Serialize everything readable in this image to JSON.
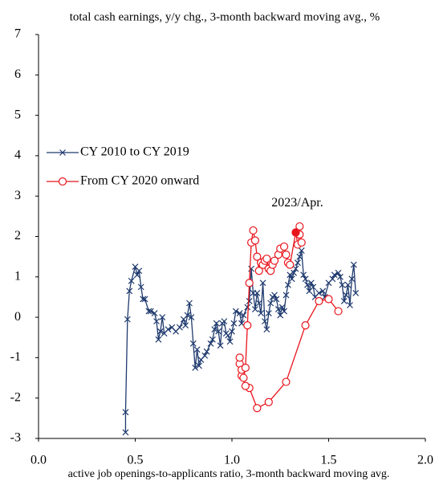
{
  "chart_data": {
    "type": "scatter-line",
    "title": "total cash earnings, y/y chg., 3-month backward moving avg., %",
    "x_label": "active job openings-to-applicants ratio, 3-month backward moving avg.",
    "xlim": [
      0,
      2
    ],
    "ylim": [
      -3,
      7
    ],
    "xticks": [
      {
        "value": 0,
        "label": "0.0"
      },
      0.5,
      {
        "value": 1,
        "label": "1.0"
      },
      1.5,
      {
        "value": 2,
        "label": "2.0"
      }
    ],
    "yticks": [
      -3,
      -2,
      -1,
      0,
      1,
      2,
      3,
      4,
      5,
      6,
      7
    ],
    "grid": false,
    "legend": "left",
    "series": [
      {
        "name": "CY 2010 to CY 2019",
        "color": "#1f3a6e",
        "marker": "x",
        "x": [
          0.45,
          0.45,
          0.46,
          0.47,
          0.48,
          0.5,
          0.51,
          0.52,
          0.53,
          0.54,
          0.55,
          0.57,
          0.58,
          0.6,
          0.61,
          0.62,
          0.63,
          0.64,
          0.65,
          0.67,
          0.69,
          0.71,
          0.73,
          0.75,
          0.76,
          0.77,
          0.78,
          0.79,
          0.8,
          0.81,
          0.82,
          0.83,
          0.84,
          0.86,
          0.87,
          0.89,
          0.9,
          0.91,
          0.92,
          0.93,
          0.94,
          0.95,
          0.96,
          0.97,
          0.98,
          0.99,
          1.0,
          1.01,
          1.02,
          1.04,
          1.05,
          1.06,
          1.08,
          1.09,
          1.1,
          1.11,
          1.12,
          1.13,
          1.14,
          1.15,
          1.16,
          1.17,
          1.18,
          1.19,
          1.2,
          1.21,
          1.22,
          1.23,
          1.24,
          1.25,
          1.26,
          1.27,
          1.28,
          1.29,
          1.3,
          1.31,
          1.32,
          1.33,
          1.34,
          1.35,
          1.36,
          1.37,
          1.38,
          1.39,
          1.4,
          1.41,
          1.42,
          1.43,
          1.45,
          1.47,
          1.48,
          1.5,
          1.52,
          1.53,
          1.55,
          1.56,
          1.57,
          1.58,
          1.59,
          1.6,
          1.61,
          1.62,
          1.63,
          1.64
        ],
        "values": [
          -2.85,
          -2.35,
          -0.05,
          0.65,
          0.9,
          1.25,
          1.05,
          1.15,
          0.75,
          0.45,
          0.45,
          0.15,
          0.15,
          0.1,
          -0.1,
          -0.55,
          -0.35,
          0.0,
          -0.4,
          -0.3,
          -0.25,
          -0.35,
          -0.25,
          -0.05,
          -0.2,
          0.05,
          0.35,
          0.0,
          -0.65,
          -1.25,
          -0.8,
          -1.2,
          -1.05,
          -0.95,
          -0.85,
          -0.65,
          -0.55,
          -0.3,
          -0.15,
          -0.35,
          -0.7,
          -0.15,
          -0.1,
          -0.4,
          -0.45,
          -0.6,
          -0.35,
          -0.15,
          0.15,
          0.1,
          -0.15,
          0.05,
          0.25,
          0.4,
          1.2,
          0.6,
          0.2,
          0.6,
          0.35,
          0.1,
          0.85,
          -0.1,
          -0.3,
          0.1,
          0.35,
          0.5,
          0.55,
          0.45,
          0.2,
          0.05,
          0.25,
          0.15,
          0.55,
          0.8,
          1.05,
          0.95,
          1.1,
          1.2,
          1.35,
          1.5,
          1.65,
          1.05,
          0.95,
          0.8,
          0.65,
          0.85,
          0.75,
          0.5,
          0.6,
          0.65,
          0.5,
          0.85,
          0.95,
          1.05,
          1.1,
          1.0,
          0.8,
          0.4,
          0.55,
          0.8,
          0.3,
          0.95,
          1.3,
          0.6
        ]
      },
      {
        "name": "From CY 2020 onward",
        "color": "#e8141c",
        "marker": "circle",
        "x": [
          1.55,
          1.5,
          1.45,
          1.38,
          1.28,
          1.19,
          1.13,
          1.09,
          1.07,
          1.05,
          1.04,
          1.04,
          1.05,
          1.06,
          1.07,
          1.08,
          1.09,
          1.1,
          1.11,
          1.12,
          1.13,
          1.14,
          1.15,
          1.16,
          1.17,
          1.18,
          1.19,
          1.2,
          1.21,
          1.22,
          1.24,
          1.25,
          1.27,
          1.28,
          1.29,
          1.3,
          1.33,
          1.34,
          1.35,
          1.35,
          1.36
        ],
        "values": [
          0.15,
          0.45,
          0.4,
          -0.2,
          -1.6,
          -2.1,
          -2.25,
          -1.75,
          -1.7,
          -1.45,
          -1.15,
          -1.0,
          -1.3,
          -1.5,
          -1.25,
          -0.2,
          0.85,
          1.85,
          2.15,
          1.9,
          1.5,
          1.15,
          1.35,
          1.3,
          1.4,
          1.45,
          1.2,
          1.15,
          1.3,
          1.4,
          1.55,
          1.7,
          1.75,
          1.55,
          1.35,
          1.3,
          2.1,
          1.8,
          2.05,
          2.25,
          1.85
        ]
      }
    ],
    "annotation": {
      "text": "2023/Apr.",
      "x": 1.33,
      "y": 2.1
    }
  }
}
